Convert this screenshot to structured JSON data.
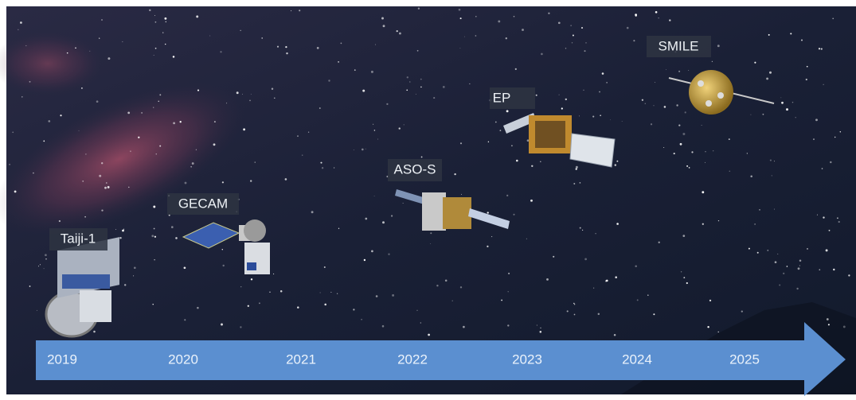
{
  "missions": [
    {
      "label": "Taiji-1"
    },
    {
      "label": "GECAM"
    },
    {
      "label": "ASO-S"
    },
    {
      "label": "EP"
    },
    {
      "label": "SMILE"
    }
  ],
  "timeline": {
    "years": [
      "2019",
      "2020",
      "2021",
      "2022",
      "2023",
      "2024",
      "2025"
    ]
  }
}
